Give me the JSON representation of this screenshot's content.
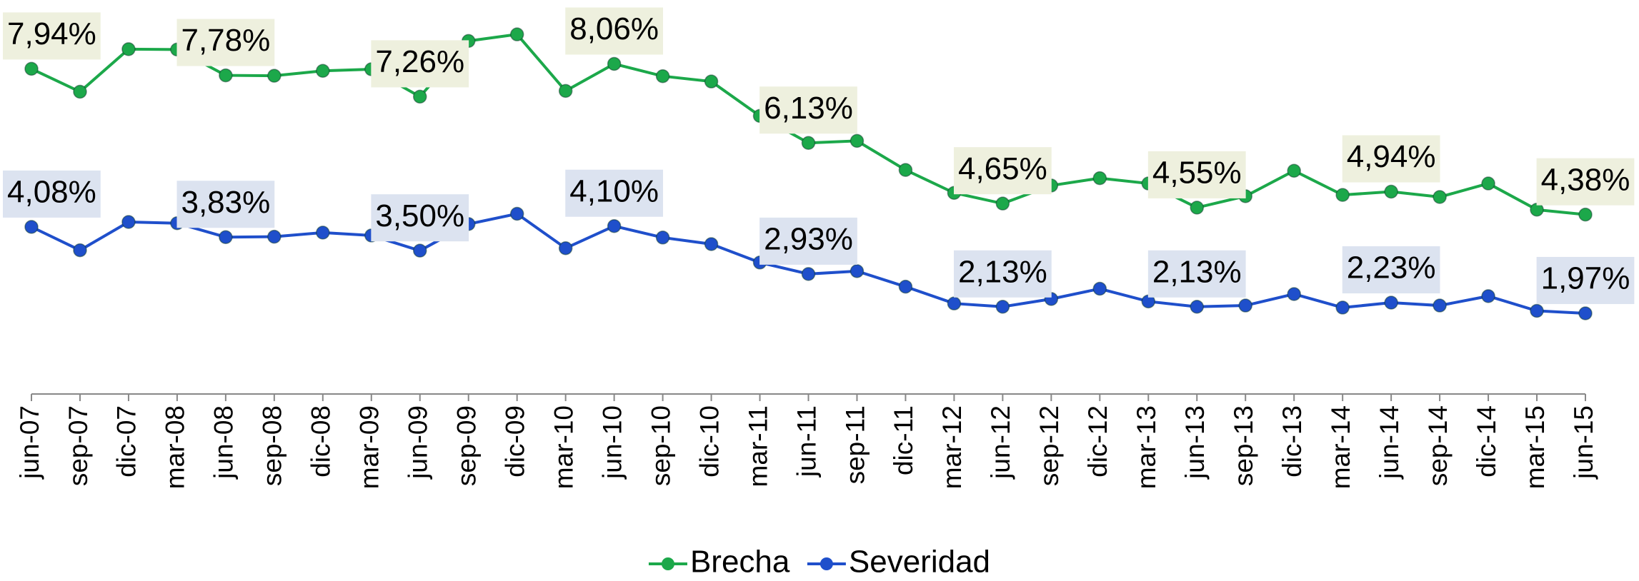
{
  "chart_data": {
    "type": "line",
    "categories": [
      "jun-07",
      "sep-07",
      "dic-07",
      "mar-08",
      "jun-08",
      "sep-08",
      "dic-08",
      "mar-09",
      "jun-09",
      "sep-09",
      "dic-09",
      "mar-10",
      "jun-10",
      "sep-10",
      "dic-10",
      "mar-11",
      "jun-11",
      "sep-11",
      "dic-11",
      "mar-12",
      "jun-12",
      "sep-12",
      "dic-12",
      "mar-13",
      "jun-13",
      "sep-13",
      "dic-13",
      "mar-14",
      "jun-14",
      "sep-14",
      "dic-14",
      "mar-15",
      "jun-15"
    ],
    "series": [
      {
        "name": "Brecha",
        "color": "#1ca84a",
        "label_background": "#eef0de",
        "values": [
          7.94,
          7.38,
          8.42,
          8.41,
          7.78,
          7.77,
          7.89,
          7.93,
          7.26,
          8.62,
          8.78,
          7.4,
          8.06,
          7.76,
          7.63,
          6.79,
          6.13,
          6.18,
          5.47,
          4.91,
          4.65,
          5.09,
          5.27,
          5.14,
          4.55,
          4.83,
          5.45,
          4.86,
          4.94,
          4.81,
          5.14,
          4.5,
          4.38
        ],
        "value_labels": [
          "7,94%",
          null,
          null,
          null,
          "7,78%",
          null,
          null,
          null,
          "7,26%",
          null,
          null,
          null,
          "8,06%",
          null,
          null,
          null,
          "6,13%",
          null,
          null,
          null,
          "4,65%",
          null,
          null,
          null,
          "4,55%",
          null,
          null,
          null,
          "4,94%",
          null,
          null,
          null,
          "4,38%"
        ]
      },
      {
        "name": "Severidad",
        "color": "#1f4fcb",
        "label_background": "#dce3f0",
        "values": [
          4.08,
          3.51,
          4.2,
          4.17,
          3.83,
          3.84,
          3.94,
          3.87,
          3.5,
          4.15,
          4.4,
          3.56,
          4.1,
          3.82,
          3.66,
          3.21,
          2.93,
          3.0,
          2.62,
          2.21,
          2.13,
          2.32,
          2.57,
          2.26,
          2.13,
          2.16,
          2.44,
          2.11,
          2.23,
          2.16,
          2.39,
          2.03,
          1.97
        ],
        "value_labels": [
          "4,08%",
          null,
          null,
          null,
          "3,83%",
          null,
          null,
          null,
          "3,50%",
          null,
          null,
          null,
          "4,10%",
          null,
          null,
          null,
          "2,93%",
          null,
          null,
          null,
          "2,13%",
          null,
          null,
          null,
          "2,13%",
          null,
          null,
          null,
          "2,23%",
          null,
          null,
          null,
          "1,97%"
        ]
      }
    ],
    "ylim": [
      0,
      9.55
    ],
    "grid": false,
    "legend": "bottom"
  }
}
